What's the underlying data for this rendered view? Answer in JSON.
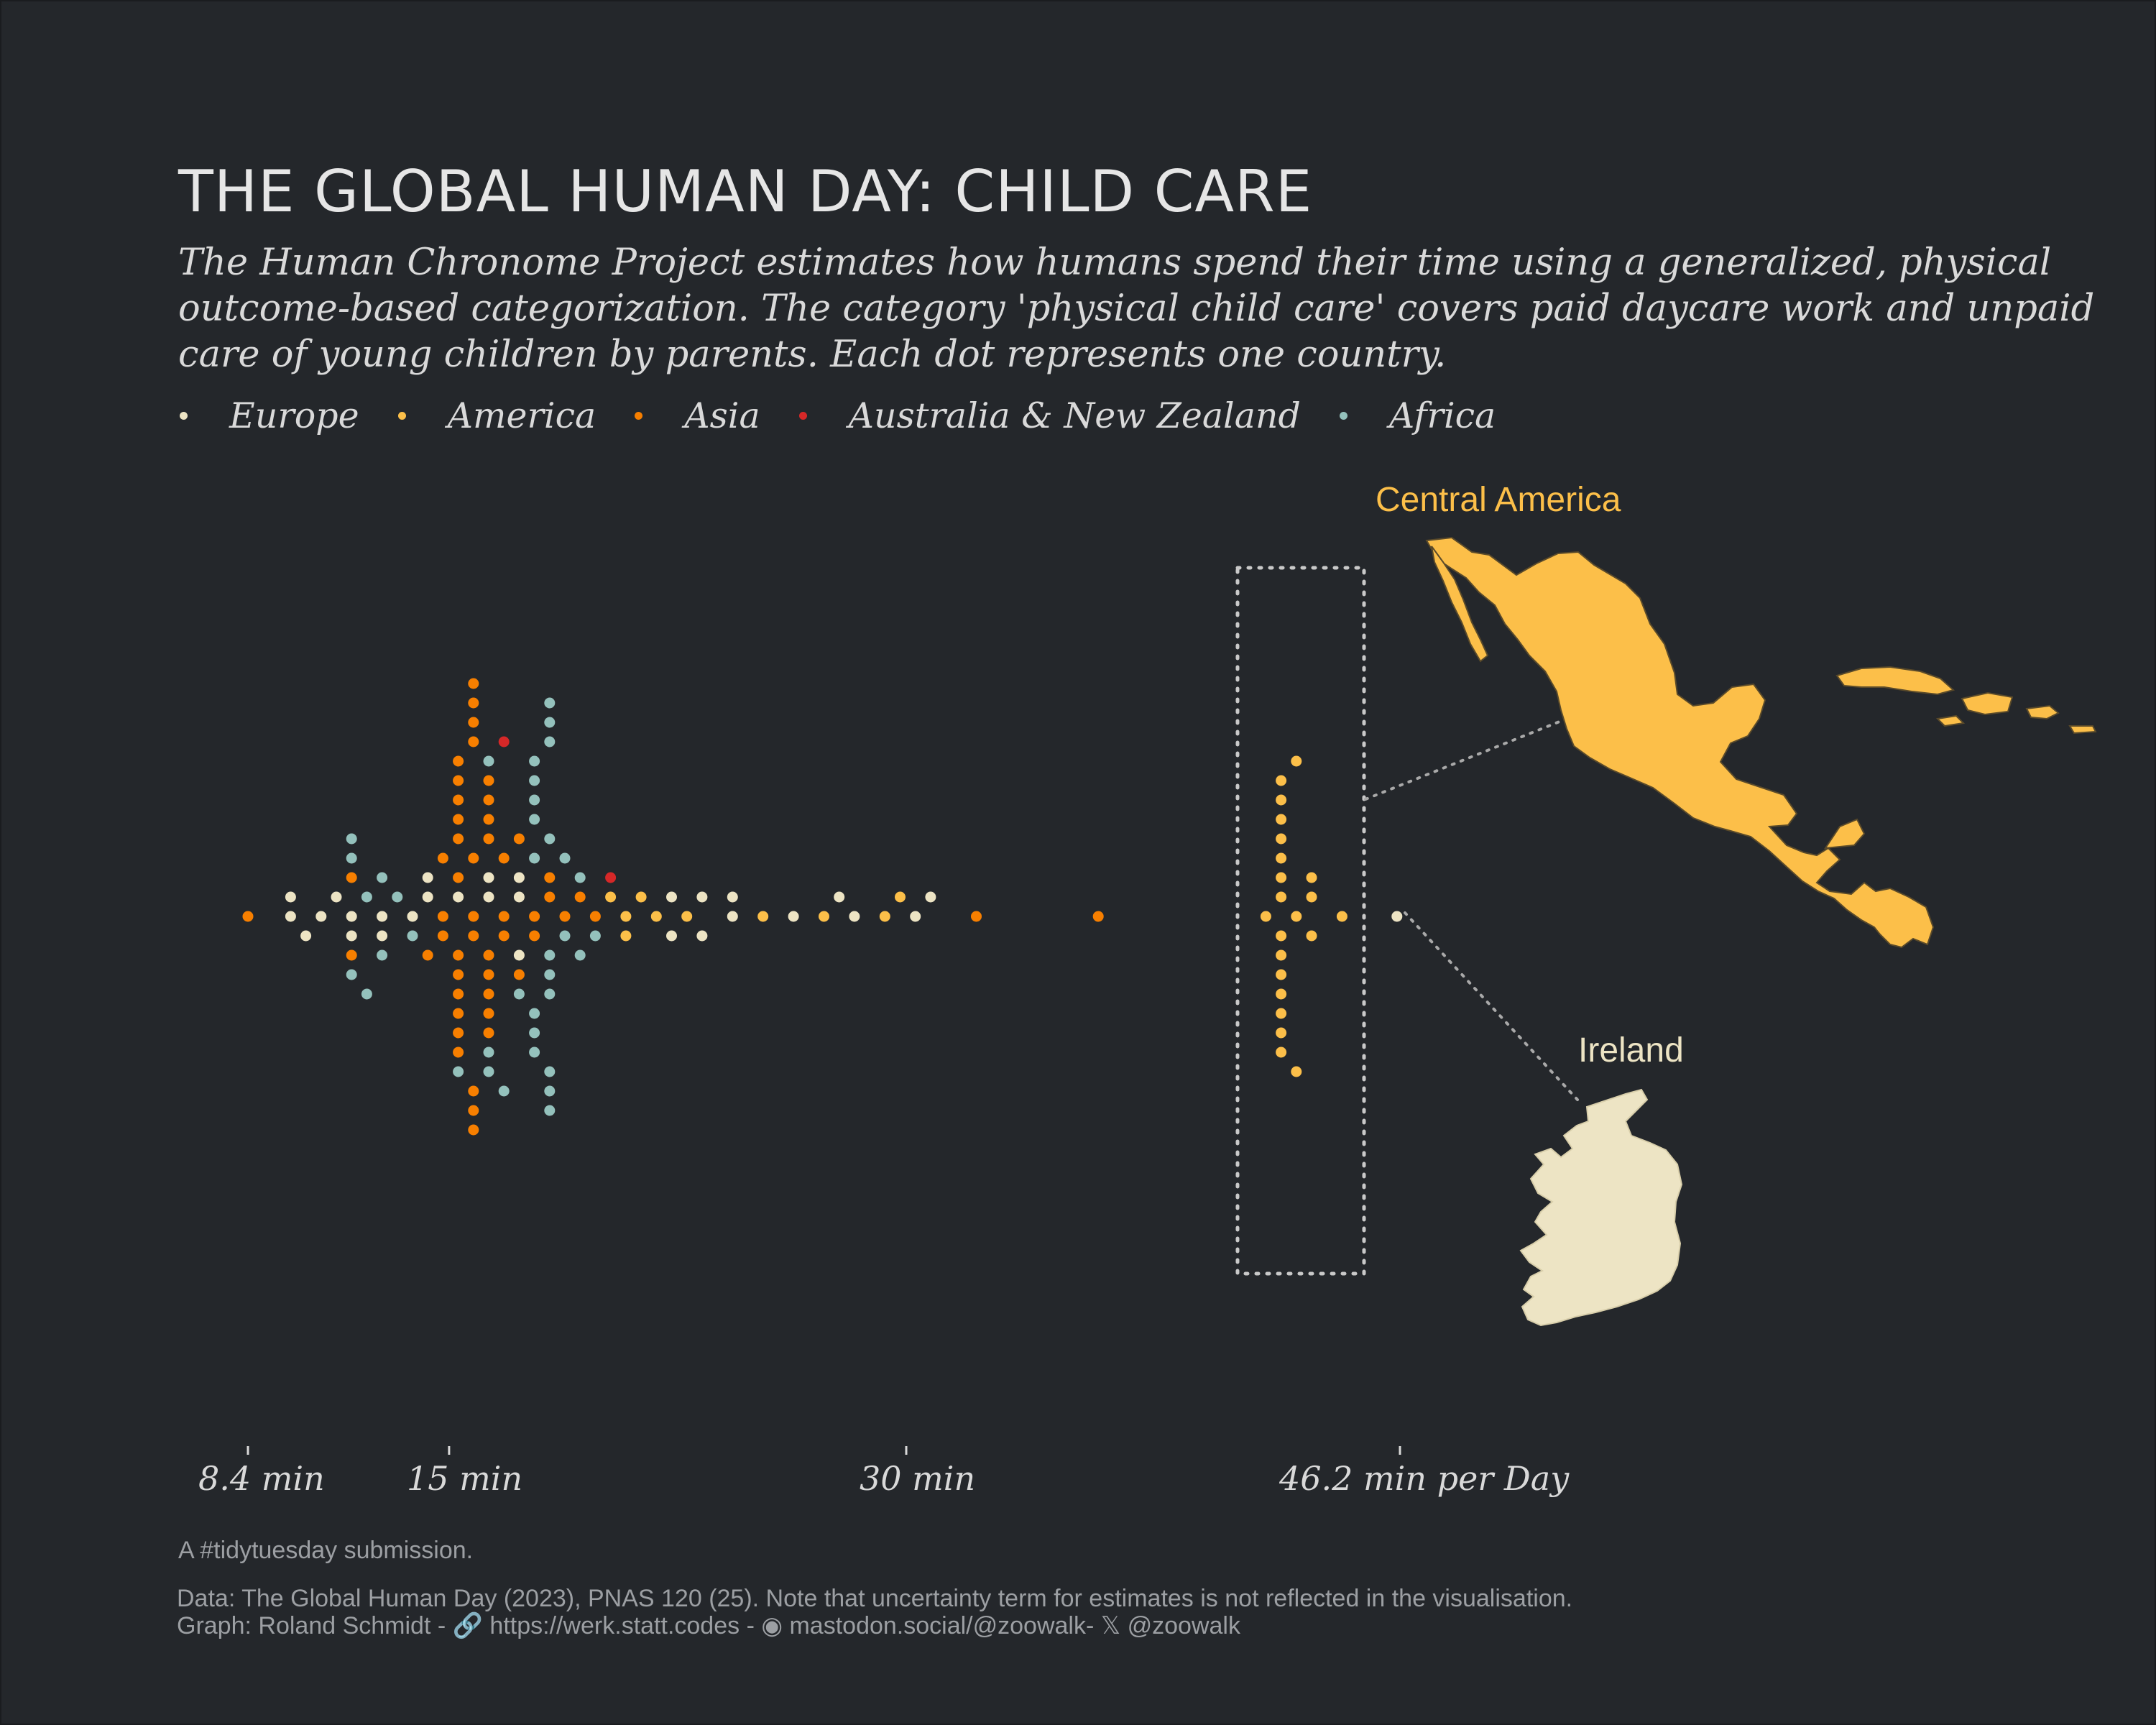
{
  "header": {
    "title": "THE GLOBAL HUMAN DAY: CHILD CARE",
    "subtitle_lines": [
      "The Human Chronome Project estimates how humans spend their time using a generalized, physical",
      "outcome-based categorization. The category 'physical child care' covers paid daycare work and unpaid",
      "care of young children by parents. Each dot represents one country."
    ]
  },
  "legend": [
    {
      "name": "Europe",
      "color": "#ede4c4"
    },
    {
      "name": "America",
      "color": "#fcbf49"
    },
    {
      "name": "Asia",
      "color": "#f77f00"
    },
    {
      "name": "Australia & New Zealand",
      "color": "#d62828"
    },
    {
      "name": "Africa",
      "color": "#94c1bc"
    }
  ],
  "axis": {
    "ticks": [
      {
        "value": 8.4,
        "label": "8.4 min"
      },
      {
        "value": 15,
        "label": "15 min"
      },
      {
        "value": 30,
        "label": "30 min"
      },
      {
        "value": 46.2,
        "label": "46.2 min"
      }
    ],
    "unit_suffix": "per Day"
  },
  "annotations": {
    "central_america": "Central America",
    "ireland": "Ireland"
  },
  "footer": {
    "tidytuesday": "A #tidytuesday submission.",
    "data_line": "Data: The Global Human Day (2023), PNAS 120 (25). Note that uncertainty term for estimates is not reflected in the visualisation.",
    "graph_prefix": "Graph: Roland Schmidt - ",
    "link_icon": "link-icon",
    "website": "https://werk.statt.codes",
    "mastodon_icon": "mastodon-icon",
    "mastodon": "mastodon.social/@zoowalk",
    "x_icon": "x-icon",
    "x_handle": "@zoowalk",
    "sep": "-"
  },
  "chart_data": {
    "type": "scatter",
    "title": "THE GLOBAL HUMAN DAY: CHILD CARE",
    "xlabel": "min per Day",
    "xlim": [
      8.4,
      46.2
    ],
    "note": "Beeswarm of minutes per day spent on physical child care; each dot is one country",
    "series": [
      {
        "name": "Europe",
        "color": "#ede4c4",
        "values": [
          9.8,
          9.8,
          10.3,
          10.8,
          11.3,
          11.8,
          11.8,
          12.8,
          12.8,
          13.8,
          14.3,
          14.3,
          15.3,
          16.3,
          16.3,
          17.3,
          17.3,
          17.3,
          22.3,
          22.3,
          23.3,
          23.3,
          24.3,
          24.3,
          26.3,
          27.8,
          28.3,
          30.3,
          30.8,
          46.1
        ]
      },
      {
        "name": "America",
        "color": "#fcbf49",
        "values": [
          20.3,
          20.8,
          20.8,
          21.3,
          21.8,
          22.8,
          25.3,
          27.3,
          29.3,
          29.8,
          41.8,
          42.3,
          42.3,
          42.3,
          42.3,
          42.3,
          42.3,
          42.3,
          42.3,
          42.3,
          42.3,
          42.3,
          42.3,
          42.3,
          42.3,
          42.8,
          42.8,
          42.8,
          43.3,
          43.3,
          43.3,
          44.3
        ]
      },
      {
        "name": "Asia",
        "color": "#f77f00",
        "values": [
          8.4,
          11.8,
          11.8,
          14.3,
          14.8,
          14.8,
          14.8,
          15.3,
          15.3,
          15.3,
          15.3,
          15.3,
          15.3,
          15.3,
          15.3,
          15.3,
          15.3,
          15.3,
          15.3,
          15.8,
          15.8,
          15.8,
          15.8,
          15.8,
          15.8,
          15.8,
          15.8,
          15.8,
          15.8,
          16.3,
          16.3,
          16.3,
          16.3,
          16.3,
          16.3,
          16.3,
          16.3,
          16.3,
          16.8,
          16.8,
          16.8,
          17.3,
          17.3,
          17.8,
          17.8,
          18.3,
          18.3,
          18.8,
          19.3,
          19.8,
          32.3,
          36.3
        ]
      },
      {
        "name": "Australia & New Zealand",
        "color": "#d62828",
        "values": [
          16.8,
          20.3
        ]
      },
      {
        "name": "Africa",
        "color": "#94c1bc",
        "values": [
          11.8,
          11.8,
          11.8,
          12.3,
          12.3,
          12.8,
          12.8,
          13.3,
          13.8,
          15.3,
          16.3,
          16.3,
          16.3,
          16.8,
          17.3,
          17.8,
          17.8,
          17.8,
          17.8,
          17.8,
          17.8,
          17.8,
          17.8,
          18.3,
          18.3,
          18.3,
          18.3,
          18.3,
          18.3,
          18.3,
          18.3,
          18.3,
          18.3,
          18.8,
          18.8,
          19.3,
          19.3,
          19.8
        ]
      }
    ]
  }
}
